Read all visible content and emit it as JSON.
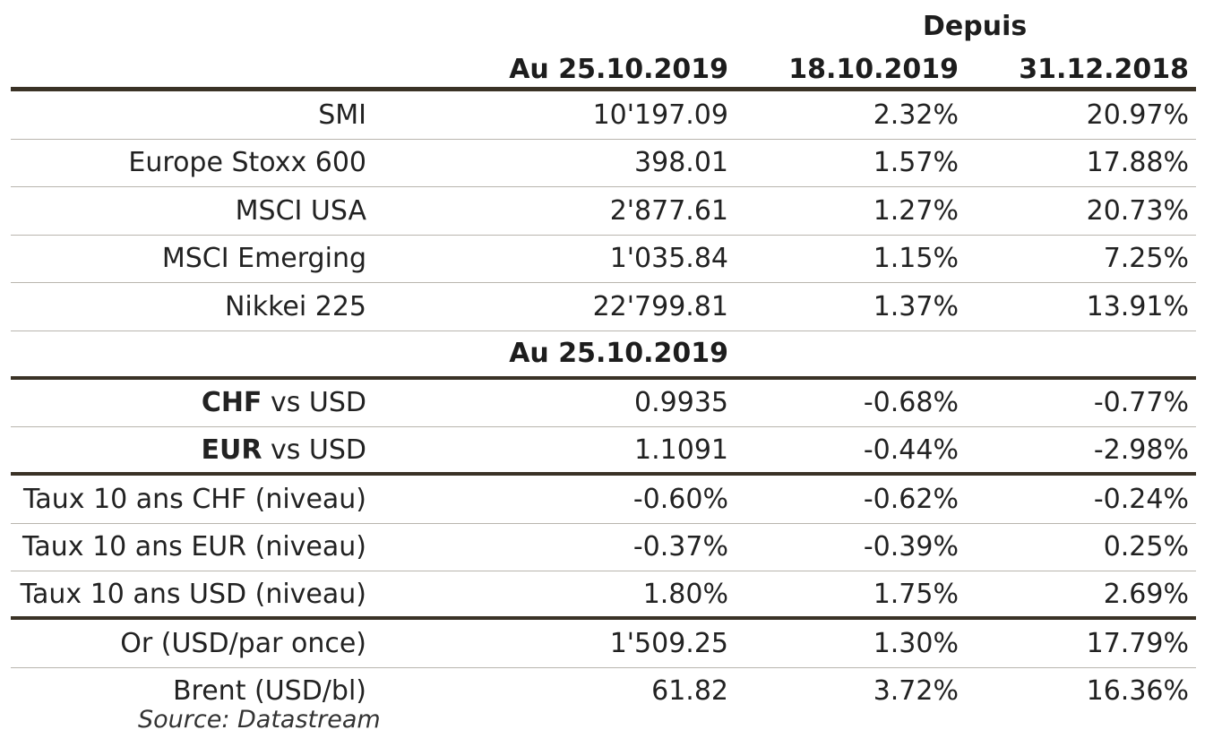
{
  "header": {
    "depuis": "Depuis",
    "col1": "Au 25.10.2019",
    "col2": "18.10.2019",
    "col3": "31.12.2018"
  },
  "indices": [
    {
      "label": "SMI",
      "v1": "10'197.09",
      "v2": "2.32%",
      "v3": "20.97%"
    },
    {
      "label": "Europe Stoxx 600",
      "v1": "398.01",
      "v2": "1.57%",
      "v3": "17.88%"
    },
    {
      "label": "MSCI USA",
      "v1": "2'877.61",
      "v2": "1.27%",
      "v3": "20.73%"
    },
    {
      "label": "MSCI Emerging",
      "v1": "1'035.84",
      "v2": "1.15%",
      "v3": "7.25%"
    },
    {
      "label": "Nikkei 225",
      "v1": "22'799.81",
      "v2": "1.37%",
      "v3": "13.91%"
    }
  ],
  "subheader": {
    "col1": "Au 25.10.2019"
  },
  "currencies": [
    {
      "label_bold": "CHF",
      "label_rest": " vs USD",
      "v1": "0.9935",
      "v2": "-0.68%",
      "v3": "-0.77%"
    },
    {
      "label_bold": "EUR",
      "label_rest": " vs USD",
      "v1": "1.1091",
      "v2": "-0.44%",
      "v3": "-2.98%"
    }
  ],
  "rates": [
    {
      "label": "Taux 10 ans CHF (niveau)",
      "v1": "-0.60%",
      "v2": "-0.62%",
      "v3": "-0.24%"
    },
    {
      "label": "Taux 10 ans EUR (niveau)",
      "v1": "-0.37%",
      "v2": "-0.39%",
      "v3": "0.25%"
    },
    {
      "label": "Taux 10 ans USD (niveau)",
      "v1": "1.80%",
      "v2": "1.75%",
      "v3": "2.69%"
    }
  ],
  "commodities": [
    {
      "label": "Or (USD/par once)",
      "v1": "1'509.25",
      "v2": "1.30%",
      "v3": "17.79%"
    },
    {
      "label": "Brent (USD/bl)",
      "v1": "61.82",
      "v2": "3.72%",
      "v3": "16.36%"
    }
  ],
  "source": "Source: Datastream"
}
